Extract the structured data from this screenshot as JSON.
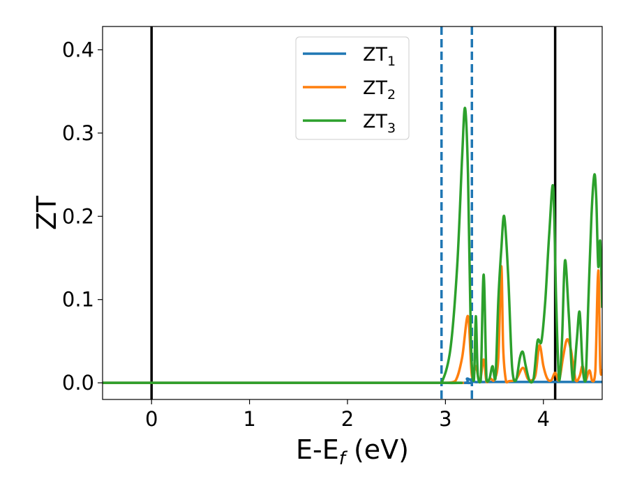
{
  "chart_data": {
    "type": "line",
    "xlabel": "E-E",
    "xlabel_sub": "f",
    "xlabel_unit": " (eV)",
    "ylabel": "ZT",
    "xlim": [
      -0.5,
      4.6
    ],
    "ylim": [
      -0.02,
      0.428
    ],
    "xticks": [
      0,
      1,
      2,
      3,
      4
    ],
    "yticks": [
      0.0,
      0.1,
      0.2,
      0.3,
      0.4
    ],
    "xtick_labels": [
      "0",
      "1",
      "2",
      "3",
      "4"
    ],
    "ytick_labels": [
      "0.0",
      "0.1",
      "0.2",
      "0.3",
      "0.4"
    ],
    "grid": false,
    "legend_position": "top-center",
    "vlines": [
      {
        "x": 0.0,
        "style": "solid",
        "color": "#000000"
      },
      {
        "x": 4.12,
        "style": "solid",
        "color": "#000000"
      },
      {
        "x": 2.96,
        "style": "dashed",
        "color": "#1f77b4"
      },
      {
        "x": 3.27,
        "style": "dashed",
        "color": "#1f77b4"
      }
    ],
    "series": [
      {
        "name": "ZT",
        "sub": "1",
        "color": "#1f77b4",
        "x": [
          -0.5,
          2.9,
          3.2,
          3.22,
          3.26,
          3.3,
          3.5,
          4.6
        ],
        "y": [
          0,
          0,
          0,
          0.005,
          0.003,
          0.001,
          0.001,
          0.001
        ]
      },
      {
        "name": "ZT",
        "sub": "2",
        "color": "#ff7f0e",
        "x": [
          -0.5,
          2.9,
          3.0,
          3.1,
          3.17,
          3.23,
          3.27,
          3.31,
          3.35,
          3.39,
          3.42,
          3.46,
          3.5,
          3.54,
          3.57,
          3.59,
          3.62,
          3.65,
          3.72,
          3.79,
          3.84,
          3.88,
          3.92,
          3.96,
          4.0,
          4.04,
          4.08,
          4.12,
          4.16,
          4.2,
          4.24,
          4.28,
          4.33,
          4.37,
          4.4,
          4.43,
          4.47,
          4.5,
          4.53,
          4.56,
          4.58,
          4.6
        ],
        "y": [
          0,
          0,
          0.0,
          0.002,
          0.03,
          0.08,
          0.008,
          0.02,
          0.001,
          0.028,
          0.001,
          0.005,
          0.004,
          0.03,
          0.14,
          0.04,
          0.001,
          0.002,
          0.004,
          0.018,
          0.005,
          0.003,
          0.01,
          0.045,
          0.02,
          0.005,
          0.003,
          0.012,
          0.003,
          0.03,
          0.052,
          0.04,
          0.003,
          0.008,
          0.02,
          0.003,
          0.015,
          0.002,
          0.014,
          0.135,
          0.02,
          0.015
        ]
      },
      {
        "name": "ZT",
        "sub": "3",
        "color": "#2ca02c",
        "x": [
          -0.5,
          2.9,
          2.96,
          3.05,
          3.12,
          3.17,
          3.2,
          3.23,
          3.26,
          3.29,
          3.31,
          3.33,
          3.36,
          3.39,
          3.42,
          3.45,
          3.48,
          3.51,
          3.54,
          3.57,
          3.6,
          3.64,
          3.68,
          3.72,
          3.76,
          3.79,
          3.82,
          3.86,
          3.9,
          3.94,
          3.98,
          4.02,
          4.06,
          4.1,
          4.13,
          4.16,
          4.19,
          4.22,
          4.26,
          4.3,
          4.34,
          4.37,
          4.4,
          4.43,
          4.46,
          4.49,
          4.52,
          4.54,
          4.56,
          4.58,
          4.6
        ],
        "y": [
          0,
          0,
          0.0,
          0.04,
          0.14,
          0.27,
          0.33,
          0.25,
          0.05,
          0.003,
          0.08,
          0.01,
          0.002,
          0.13,
          0.003,
          0.005,
          0.02,
          0.005,
          0.1,
          0.16,
          0.2,
          0.13,
          0.02,
          0.003,
          0.03,
          0.037,
          0.02,
          0.002,
          0.005,
          0.05,
          0.05,
          0.1,
          0.18,
          0.235,
          0.1,
          0.003,
          0.05,
          0.147,
          0.08,
          0.003,
          0.05,
          0.085,
          0.02,
          0.002,
          0.1,
          0.2,
          0.25,
          0.22,
          0.14,
          0.17,
          0.09
        ]
      }
    ]
  }
}
